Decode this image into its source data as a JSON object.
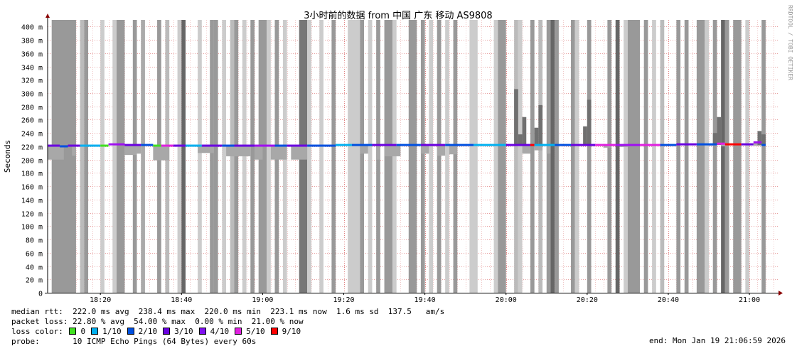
{
  "chart_data": {
    "type": "area",
    "title": "3小时前的数据 from 中国 广东 移动 AS9808",
    "ylabel": "Seconds",
    "ylim": [
      0,
      410
    ],
    "y_ticks": [
      "0",
      "20 m",
      "40 m",
      "60 m",
      "80 m",
      "100 m",
      "120 m",
      "140 m",
      "160 m",
      "180 m",
      "200 m",
      "220 m",
      "240 m",
      "260 m",
      "280 m",
      "300 m",
      "320 m",
      "340 m",
      "360 m",
      "380 m",
      "400 m"
    ],
    "x_ticks": [
      "18:20",
      "18:40",
      "19:00",
      "19:20",
      "19:40",
      "20:00",
      "20:20",
      "20:40",
      "21:00"
    ],
    "x_range": [
      "18:07",
      "21:07"
    ],
    "grid": true,
    "median_rtt_ms": 222,
    "timeouts": [
      {
        "from": "18:08",
        "to": "18:14",
        "shade": "#999999"
      },
      {
        "from": "18:15",
        "to": "18:16",
        "shade": "#bbbbbb"
      },
      {
        "from": "18:16",
        "to": "18:17",
        "shade": "#999999"
      },
      {
        "from": "18:20",
        "to": "18:21",
        "shade": "#cccccc"
      },
      {
        "from": "18:23",
        "to": "18:24",
        "shade": "#cccccc"
      },
      {
        "from": "18:24",
        "to": "18:26",
        "shade": "#999999"
      },
      {
        "from": "18:28",
        "to": "18:29",
        "shade": "#999999"
      },
      {
        "from": "18:30",
        "to": "18:31",
        "shade": "#aaaaaa"
      },
      {
        "from": "18:34",
        "to": "18:35",
        "shade": "#999999"
      },
      {
        "from": "18:36",
        "to": "18:37",
        "shade": "#bbbbbb"
      },
      {
        "from": "18:39",
        "to": "18:40",
        "shade": "#cccccc"
      },
      {
        "from": "18:40",
        "to": "18:41",
        "shade": "#666666"
      },
      {
        "from": "18:44",
        "to": "18:45",
        "shade": "#cccccc"
      },
      {
        "from": "18:47",
        "to": "18:48",
        "shade": "#999999"
      },
      {
        "from": "18:48",
        "to": "18:49",
        "shade": "#999999"
      },
      {
        "from": "18:50",
        "to": "18:51",
        "shade": "#cccccc"
      },
      {
        "from": "18:52",
        "to": "18:53",
        "shade": "#bbbbbb"
      },
      {
        "from": "18:53",
        "to": "18:54",
        "shade": "#999999"
      },
      {
        "from": "18:55",
        "to": "18:56",
        "shade": "#cccccc"
      },
      {
        "from": "18:57",
        "to": "18:58",
        "shade": "#999999"
      },
      {
        "from": "18:59",
        "to": "19:01",
        "shade": "#999999"
      },
      {
        "from": "19:01",
        "to": "19:02",
        "shade": "#cccccc"
      },
      {
        "from": "19:03",
        "to": "19:04",
        "shade": "#999999"
      },
      {
        "from": "19:05",
        "to": "19:06",
        "shade": "#cccccc"
      },
      {
        "from": "19:09",
        "to": "19:11",
        "shade": "#777777"
      },
      {
        "from": "19:11",
        "to": "19:12",
        "shade": "#cccccc"
      },
      {
        "from": "19:14",
        "to": "19:15",
        "shade": "#cccccc"
      },
      {
        "from": "19:17",
        "to": "19:18",
        "shade": "#999999"
      },
      {
        "from": "19:21",
        "to": "19:24",
        "shade": "#cccccc"
      },
      {
        "from": "19:24",
        "to": "19:25",
        "shade": "#999999"
      },
      {
        "from": "19:26",
        "to": "19:27",
        "shade": "#cccccc"
      },
      {
        "from": "19:28",
        "to": "19:29",
        "shade": "#999999"
      },
      {
        "from": "19:30",
        "to": "19:32",
        "shade": "#999999"
      },
      {
        "from": "19:32",
        "to": "19:33",
        "shade": "#cccccc"
      },
      {
        "from": "19:36",
        "to": "19:38",
        "shade": "#999999"
      },
      {
        "from": "19:39",
        "to": "19:40",
        "shade": "#999999"
      },
      {
        "from": "19:41",
        "to": "19:42",
        "shade": "#cccccc"
      },
      {
        "from": "19:43",
        "to": "19:44",
        "shade": "#999999"
      },
      {
        "from": "19:45",
        "to": "19:46",
        "shade": "#cccccc"
      },
      {
        "from": "19:47",
        "to": "19:48",
        "shade": "#999999"
      },
      {
        "from": "19:51",
        "to": "19:53",
        "shade": "#cccccc"
      },
      {
        "from": "19:57",
        "to": "19:58",
        "shade": "#cccccc"
      },
      {
        "from": "19:58",
        "to": "20:00",
        "shade": "#999999"
      },
      {
        "from": "20:02",
        "to": "20:03",
        "shade": "#bbbbbb"
      },
      {
        "from": "20:03",
        "to": "20:04",
        "shade": "#cccccc"
      },
      {
        "from": "20:06",
        "to": "20:07",
        "shade": "#999999"
      },
      {
        "from": "20:08",
        "to": "20:09",
        "shade": "#bbbbbb"
      },
      {
        "from": "20:10",
        "to": "20:11",
        "shade": "#999999"
      },
      {
        "from": "20:11",
        "to": "20:12",
        "shade": "#666666"
      },
      {
        "from": "20:12",
        "to": "20:13",
        "shade": "#999999"
      },
      {
        "from": "20:16",
        "to": "20:17",
        "shade": "#999999"
      },
      {
        "from": "20:17",
        "to": "20:18",
        "shade": "#cccccc"
      },
      {
        "from": "20:20",
        "to": "20:21",
        "shade": "#999999"
      },
      {
        "from": "20:25",
        "to": "20:26",
        "shade": "#999999"
      },
      {
        "from": "20:27",
        "to": "20:28",
        "shade": "#666666"
      },
      {
        "from": "20:29",
        "to": "20:30",
        "shade": "#cccccc"
      },
      {
        "from": "20:30",
        "to": "20:33",
        "shade": "#999999"
      },
      {
        "from": "20:34",
        "to": "20:35",
        "shade": "#999999"
      },
      {
        "from": "20:36",
        "to": "20:37",
        "shade": "#cccccc"
      },
      {
        "from": "20:38",
        "to": "20:39",
        "shade": "#bbbbbb"
      },
      {
        "from": "20:42",
        "to": "20:43",
        "shade": "#999999"
      },
      {
        "from": "20:44",
        "to": "20:45",
        "shade": "#999999"
      },
      {
        "from": "20:47",
        "to": "20:49",
        "shade": "#999999"
      },
      {
        "from": "20:49",
        "to": "20:50",
        "shade": "#cccccc"
      },
      {
        "from": "20:51",
        "to": "20:52",
        "shade": "#999999"
      },
      {
        "from": "20:53",
        "to": "20:54",
        "shade": "#666666"
      },
      {
        "from": "20:54",
        "to": "20:55",
        "shade": "#999999"
      },
      {
        "from": "20:56",
        "to": "20:58",
        "shade": "#999999"
      },
      {
        "from": "20:59",
        "to": "21:00",
        "shade": "#cccccc"
      },
      {
        "from": "21:03",
        "to": "21:04",
        "shade": "#999999"
      }
    ],
    "rtt_bands": [
      {
        "from": "18:07",
        "to": "18:11",
        "lo": 200,
        "hi": 220
      },
      {
        "from": "18:13",
        "to": "18:14",
        "lo": 206,
        "hi": 221
      },
      {
        "from": "18:26",
        "to": "18:29",
        "lo": 207,
        "hi": 221
      },
      {
        "from": "18:29",
        "to": "18:30",
        "lo": 209,
        "hi": 221
      },
      {
        "from": "18:33",
        "to": "18:37",
        "lo": 199,
        "hi": 221
      },
      {
        "from": "18:44",
        "to": "18:48",
        "lo": 210,
        "hi": 221
      },
      {
        "from": "18:51",
        "to": "18:57",
        "lo": 205,
        "hi": 221
      },
      {
        "from": "18:58",
        "to": "19:00",
        "lo": 200,
        "hi": 221
      },
      {
        "from": "19:02",
        "to": "19:06",
        "lo": 200,
        "hi": 221
      },
      {
        "from": "19:07",
        "to": "19:11",
        "lo": 200,
        "hi": 221
      },
      {
        "from": "19:24",
        "to": "19:26",
        "lo": 209,
        "hi": 221
      },
      {
        "from": "19:28",
        "to": "19:29",
        "lo": 200,
        "hi": 221
      },
      {
        "from": "19:30",
        "to": "19:34",
        "lo": 205,
        "hi": 221
      },
      {
        "from": "19:39",
        "to": "19:41",
        "lo": 209,
        "hi": 221
      },
      {
        "from": "19:43",
        "to": "19:45",
        "lo": 206,
        "hi": 221
      },
      {
        "from": "19:46",
        "to": "19:48",
        "lo": 208,
        "hi": 221
      },
      {
        "from": "20:04",
        "to": "20:06",
        "lo": 209,
        "hi": 221
      },
      {
        "from": "20:07",
        "to": "20:09",
        "lo": 214,
        "hi": 222
      },
      {
        "from": "20:10",
        "to": "20:11",
        "lo": 209,
        "hi": 221
      },
      {
        "from": "20:24",
        "to": "20:26",
        "lo": 218,
        "hi": 222
      },
      {
        "from": "20:28",
        "to": "20:30",
        "lo": 219,
        "hi": 222
      },
      {
        "from": "20:50",
        "to": "20:52",
        "lo": 221,
        "hi": 224
      },
      {
        "from": "20:53",
        "to": "20:55",
        "lo": 220,
        "hi": 224
      },
      {
        "from": "21:01",
        "to": "21:03",
        "lo": 221,
        "hi": 225
      }
    ],
    "rtt_spikes": [
      {
        "at": "20:02",
        "y": 306
      },
      {
        "at": "20:03",
        "y": 238
      },
      {
        "at": "20:04",
        "y": 264
      },
      {
        "at": "20:07",
        "y": 248
      },
      {
        "at": "20:08",
        "y": 282
      },
      {
        "at": "20:19",
        "y": 250
      },
      {
        "at": "20:20",
        "y": 290
      },
      {
        "at": "20:51",
        "y": 240
      },
      {
        "at": "20:52",
        "y": 264
      },
      {
        "at": "21:02",
        "y": 243
      },
      {
        "at": "21:03",
        "y": 238
      }
    ],
    "median_segments": [
      {
        "from": "18:07",
        "to": "18:10",
        "y": 221,
        "color": "#6a00e0"
      },
      {
        "from": "18:10",
        "to": "18:12",
        "y": 220,
        "color": "#0050e0"
      },
      {
        "from": "18:12",
        "to": "18:15",
        "y": 221,
        "color": "#6a00e0"
      },
      {
        "from": "18:15",
        "to": "18:20",
        "y": 221,
        "color": "#00b0f0"
      },
      {
        "from": "18:20",
        "to": "18:22",
        "y": 221,
        "color": "#40e020"
      },
      {
        "from": "18:22",
        "to": "18:26",
        "y": 223,
        "color": "#a010f0"
      },
      {
        "from": "18:26",
        "to": "18:30",
        "y": 222,
        "color": "#6a00e0"
      },
      {
        "from": "18:30",
        "to": "18:33",
        "y": 222,
        "color": "#0050e0"
      },
      {
        "from": "18:33",
        "to": "18:35",
        "y": 221,
        "color": "#40e020"
      },
      {
        "from": "18:35",
        "to": "18:38",
        "y": 221,
        "color": "#e020e0"
      },
      {
        "from": "18:38",
        "to": "18:41",
        "y": 221,
        "color": "#6a00e0"
      },
      {
        "from": "18:41",
        "to": "18:45",
        "y": 221,
        "color": "#00b0f0"
      },
      {
        "from": "18:45",
        "to": "18:50",
        "y": 221,
        "color": "#6a00e0"
      },
      {
        "from": "18:50",
        "to": "18:53",
        "y": 221,
        "color": "#0050e0"
      },
      {
        "from": "18:53",
        "to": "18:58",
        "y": 221,
        "color": "#6a00e0"
      },
      {
        "from": "18:58",
        "to": "19:03",
        "y": 221,
        "color": "#a010f0"
      },
      {
        "from": "19:03",
        "to": "19:06",
        "y": 221,
        "color": "#0050e0"
      },
      {
        "from": "19:06",
        "to": "19:11",
        "y": 221,
        "color": "#6a00e0"
      },
      {
        "from": "19:11",
        "to": "19:18",
        "y": 221,
        "color": "#0050e0"
      },
      {
        "from": "19:18",
        "to": "19:22",
        "y": 222,
        "color": "#00b0f0"
      },
      {
        "from": "19:22",
        "to": "19:27",
        "y": 222,
        "color": "#0050e0"
      },
      {
        "from": "19:27",
        "to": "19:33",
        "y": 222,
        "color": "#6a00e0"
      },
      {
        "from": "19:33",
        "to": "19:39",
        "y": 222,
        "color": "#0050e0"
      },
      {
        "from": "19:39",
        "to": "19:45",
        "y": 222,
        "color": "#6a00e0"
      },
      {
        "from": "19:45",
        "to": "19:52",
        "y": 222,
        "color": "#0050e0"
      },
      {
        "from": "19:52",
        "to": "20:00",
        "y": 222,
        "color": "#00b0f0"
      },
      {
        "from": "20:00",
        "to": "20:06",
        "y": 222,
        "color": "#6a00e0"
      },
      {
        "from": "20:06",
        "to": "20:07",
        "y": 222,
        "color": "#ff0000"
      },
      {
        "from": "20:07",
        "to": "20:12",
        "y": 222,
        "color": "#00b0f0"
      },
      {
        "from": "20:12",
        "to": "20:16",
        "y": 222,
        "color": "#0050e0"
      },
      {
        "from": "20:16",
        "to": "20:22",
        "y": 222,
        "color": "#6a00e0"
      },
      {
        "from": "20:22",
        "to": "20:27",
        "y": 222,
        "color": "#e020e0"
      },
      {
        "from": "20:27",
        "to": "20:33",
        "y": 222,
        "color": "#a010f0"
      },
      {
        "from": "20:33",
        "to": "20:38",
        "y": 222,
        "color": "#e020e0"
      },
      {
        "from": "20:38",
        "to": "20:42",
        "y": 222,
        "color": "#0050e0"
      },
      {
        "from": "20:42",
        "to": "20:47",
        "y": 223,
        "color": "#6a00e0"
      },
      {
        "from": "20:47",
        "to": "20:52",
        "y": 223,
        "color": "#0050e0"
      },
      {
        "from": "20:52",
        "to": "20:54",
        "y": 224,
        "color": "#e020e0"
      },
      {
        "from": "20:54",
        "to": "20:58",
        "y": 223,
        "color": "#ff0000"
      },
      {
        "from": "20:58",
        "to": "21:01",
        "y": 223,
        "color": "#6a00e0"
      },
      {
        "from": "21:01",
        "to": "21:03",
        "y": 226,
        "color": "#a010f0"
      },
      {
        "from": "21:03",
        "to": "21:04",
        "y": 222,
        "color": "#0050e0"
      }
    ],
    "side_label": "RRDTOOL / TOBI OETIKER"
  },
  "stats": {
    "median_rtt": "median rtt:  222.0 ms avg  238.4 ms max  220.0 ms min  223.1 ms now  1.6 ms sd  137.5   am/s",
    "packet_loss": "packet loss: 22.80 % avg  54.00 % max  0.00 % min  21.00 % now",
    "loss_color_label": "loss color:",
    "loss_colors": [
      {
        "label": "0",
        "color": "#40e020"
      },
      {
        "label": "1/10",
        "color": "#00b0f0"
      },
      {
        "label": "2/10",
        "color": "#0050e0"
      },
      {
        "label": "3/10",
        "color": "#6a00e0"
      },
      {
        "label": "4/10",
        "color": "#8010f0"
      },
      {
        "label": "5/10",
        "color": "#e020e0"
      },
      {
        "label": "9/10",
        "color": "#ff0000"
      }
    ],
    "probe": "probe:       10 ICMP Echo Pings (64 Bytes) every 60s",
    "end": "end: Mon Jan 19 21:06:59 2026"
  }
}
